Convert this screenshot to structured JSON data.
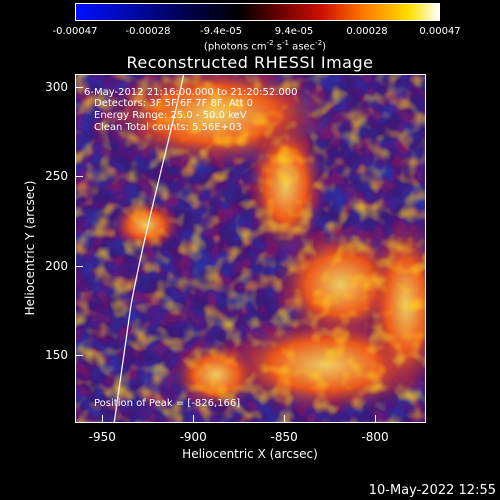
{
  "colorbar": {
    "labels": [
      "-0.00047",
      "-0.00028",
      "-9.4e-05",
      "9.4e-05",
      "0.00028",
      "0.00047"
    ],
    "units_prefix": "(photons cm",
    "units_exp1": "-2",
    "units_mid1": " s",
    "units_exp2": "-1",
    "units_mid2": " asec",
    "units_exp3": "-2",
    "units_suffix": ")"
  },
  "title": "Reconstructed RHESSI Image",
  "annotations": {
    "time_range": "6-May-2012 21:16:00.000 to 21:20:52.000",
    "detectors": "Detectors: 3F 5F 6F 7F 8F, Att 0",
    "energy": "Energy Range: 25.0 - 50.0 keV",
    "clean": "Clean    Total counts: 5.56E+03",
    "peak": "Position of Peak = [-826,166]"
  },
  "axes": {
    "xlabel": "Heliocentric X (arcsec)",
    "ylabel": "Heliocentric Y (arcsec)",
    "xticks": [
      "-950",
      "-900",
      "-850",
      "-800"
    ],
    "yticks": [
      "300",
      "250",
      "200",
      "150"
    ],
    "xrange": [
      -965,
      -772
    ],
    "yrange": [
      112,
      307
    ],
    "xtick_values": [
      -950,
      -900,
      -850,
      -800
    ],
    "ytick_values": [
      300,
      250,
      200,
      150
    ]
  },
  "footer": {
    "timestamp": "10-May-2022 12:55"
  },
  "colors": {
    "background": "#000000",
    "low": "#3020a0",
    "mid": "#a01048",
    "high": "#ffd000"
  }
}
